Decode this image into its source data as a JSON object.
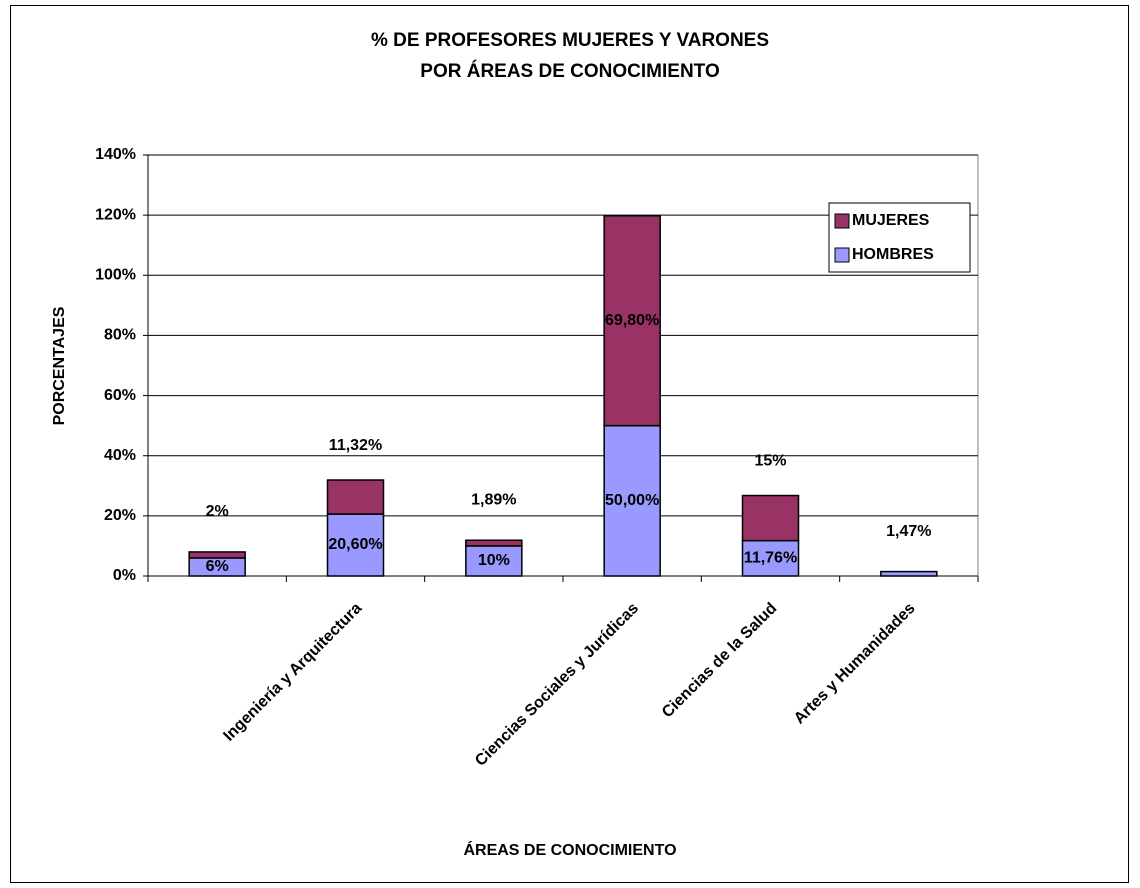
{
  "chart_data": {
    "type": "bar",
    "stacked": true,
    "title": [
      "% DE PROFESORES MUJERES Y VARONES",
      "POR ÁREAS DE CONOCIMIENTO"
    ],
    "x_label": "ÁREAS DE CONOCIMIENTO",
    "y_label": "PORCENTAJES",
    "categories": [
      null,
      "Ingeniería y Arquitectura",
      null,
      "Ciencias Sociales y Jurídicas",
      "Ciencias de la Salud",
      "Artes y Humanidades"
    ],
    "series": [
      {
        "name": "HOMBRES",
        "color": "#9999ff",
        "values": [
          6,
          20.6,
          10,
          50,
          11.76,
          1.47
        ],
        "value_labels": [
          "6%",
          "20,60%",
          "10%",
          "50,00%",
          "11,76%",
          "1,47%"
        ]
      },
      {
        "name": "MUJERES",
        "color": "#993366",
        "values": [
          2,
          11.32,
          1.89,
          69.8,
          15,
          null
        ],
        "value_labels": [
          "2%",
          "11,32%",
          "1,89%",
          "69,80%",
          "15%",
          null
        ]
      }
    ],
    "ylim": [
      0,
      140
    ],
    "yticks": [
      {
        "value": 0,
        "label": "0%"
      },
      {
        "value": 20,
        "label": "20%"
      },
      {
        "value": 40,
        "label": "40%"
      },
      {
        "value": 60,
        "label": "60%"
      },
      {
        "value": 80,
        "label": "80%"
      },
      {
        "value": 100,
        "label": "100%"
      },
      {
        "value": 120,
        "label": "120%"
      },
      {
        "value": 140,
        "label": "140%"
      }
    ],
    "grid": true,
    "legend": "upper right"
  }
}
